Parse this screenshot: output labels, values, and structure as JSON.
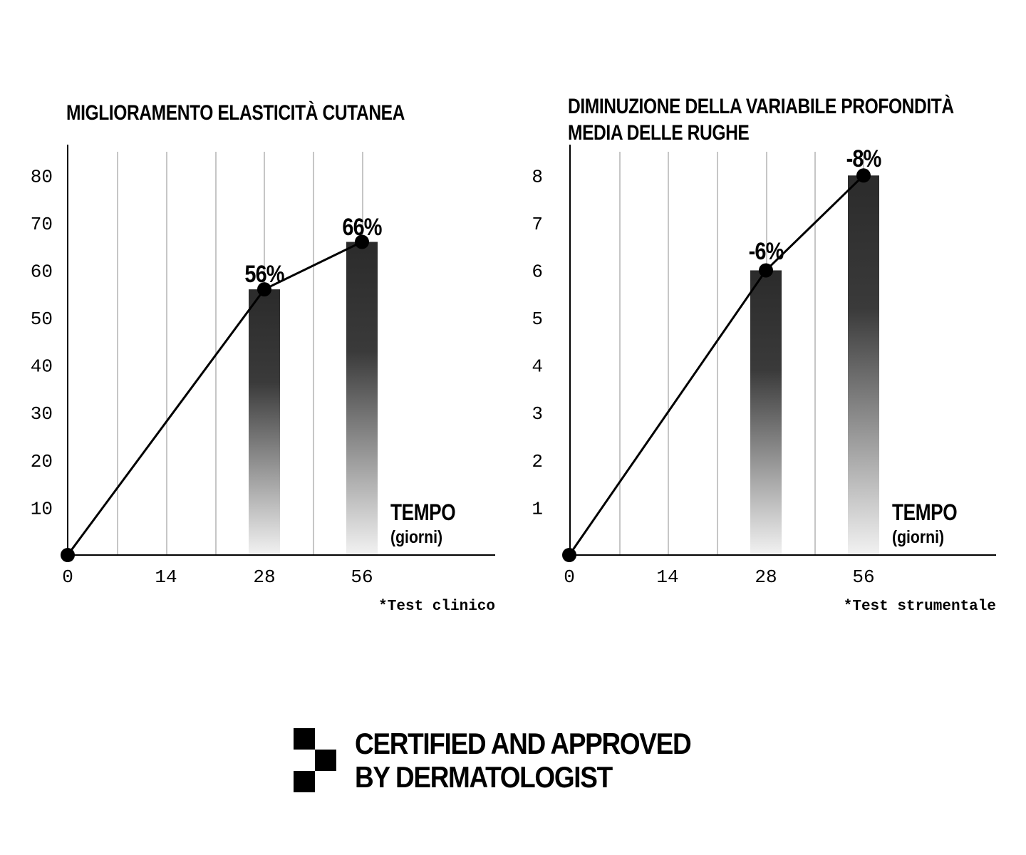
{
  "charts": [
    {
      "title_lines": [
        "MIGLIORAMENTO ELASTICITÀ CUTANEA"
      ],
      "time_label": "TEMPO",
      "time_unit": "(giorni)",
      "footnote": "*Test clinico"
    },
    {
      "title_lines": [
        "DIMINUZIONE DELLA VARIABILE PROFONDITÀ",
        "MEDIA DELLE RUGHE"
      ],
      "time_label": "TEMPO",
      "time_unit": "(giorni)",
      "footnote": "*Test strumentale"
    }
  ],
  "chart_data": [
    {
      "type": "bar",
      "title": "MIGLIORAMENTO ELASTICITÀ CUTANEA",
      "xlabel": "TEMPO (giorni)",
      "ylabel": "",
      "categories": [
        "0",
        "14",
        "28",
        "56"
      ],
      "bars": [
        {
          "x": "28",
          "value": 56
        },
        {
          "x": "56",
          "value": 66
        }
      ],
      "line_points": [
        {
          "x": "0",
          "y": 0
        },
        {
          "x": "28",
          "y": 56
        },
        {
          "x": "56",
          "y": 66
        }
      ],
      "data_labels": [
        {
          "x": "28",
          "text": "56%"
        },
        {
          "x": "56",
          "text": "66%"
        }
      ],
      "yticks": [
        "10",
        "20",
        "30",
        "40",
        "50",
        "60",
        "70",
        "80"
      ],
      "ylim": [
        0,
        88
      ],
      "grid": "vertical",
      "legend": "none",
      "note": "*Test clinico"
    },
    {
      "type": "bar",
      "title": "DIMINUZIONE DELLA VARIABILE PROFONDITÀ MEDIA DELLE RUGHE",
      "xlabel": "TEMPO (giorni)",
      "ylabel": "",
      "categories": [
        "0",
        "14",
        "28",
        "56"
      ],
      "bars": [
        {
          "x": "28",
          "value": 6
        },
        {
          "x": "56",
          "value": 8
        }
      ],
      "line_points": [
        {
          "x": "0",
          "y": 0
        },
        {
          "x": "28",
          "y": 6
        },
        {
          "x": "56",
          "y": 8
        }
      ],
      "data_labels": [
        {
          "x": "28",
          "text": "-6%"
        },
        {
          "x": "56",
          "text": "-8%"
        }
      ],
      "yticks": [
        "1",
        "2",
        "3",
        "4",
        "5",
        "6",
        "7",
        "8"
      ],
      "ylim": [
        0,
        8.8
      ],
      "grid": "vertical",
      "legend": "none",
      "note": "*Test strumentale"
    }
  ],
  "badge": {
    "line1": "CERTIFIED AND APPROVED",
    "line2": "BY DERMATOLOGIST",
    "icon": "checker-icon"
  },
  "colors": {
    "bar_top": "#2b2b2b",
    "bar_bottom": "#f2f2f2",
    "line": "#000000",
    "grid": "#8c8c8c",
    "text": "#000000"
  }
}
